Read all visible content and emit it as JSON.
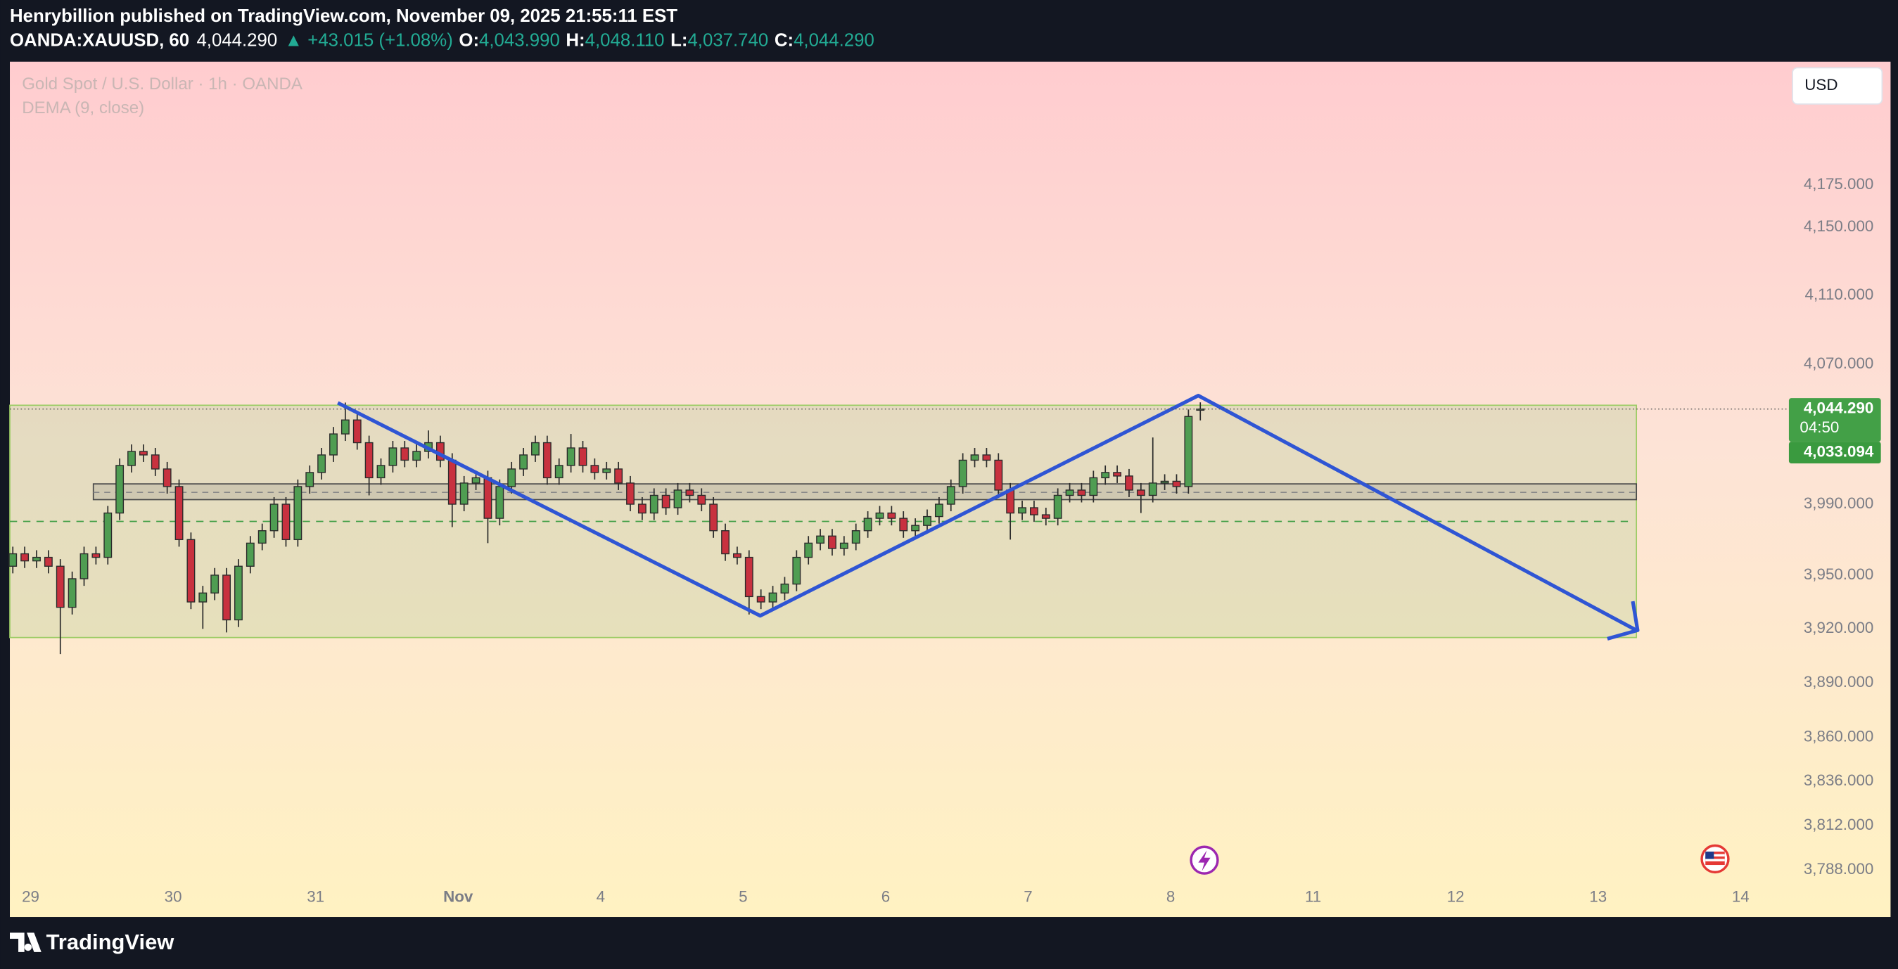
{
  "header": {
    "published": "Henrybillion published on TradingView.com, November 09, 2025 21:55:11 EST",
    "symbol": "OANDA:XAUUSD, 60",
    "last": "4,044.290",
    "change": "▲ +43.015 (+1.08%)",
    "o_label": "O:",
    "o": "4,043.990",
    "h_label": "H:",
    "h": "4,048.110",
    "l_label": "L:",
    "l": "4,037.740",
    "c_label": "C:",
    "c": "4,044.290"
  },
  "chart_data": {
    "type": "candlestick",
    "title": "Gold Spot / U.S. Dollar · 1h · OANDA",
    "indicator": "DEMA (9, close)",
    "currency": "USD",
    "up_color": "#4f9d52",
    "down_color": "#c8313f",
    "log_scale": true,
    "x": [
      -3,
      -1,
      1,
      3,
      5,
      7,
      9,
      11,
      13,
      15,
      17,
      19,
      21,
      23,
      25,
      27,
      29,
      31,
      33,
      35,
      37,
      39,
      41,
      43,
      45,
      47,
      49,
      51,
      53,
      55,
      57,
      59,
      61,
      63,
      65,
      67,
      69,
      71,
      73,
      75,
      77,
      79,
      81,
      83,
      85,
      87,
      89,
      91,
      93,
      95,
      97,
      99,
      101,
      103,
      105,
      107,
      109,
      111,
      113,
      115,
      117,
      119,
      121,
      123,
      125,
      127,
      129,
      131,
      133,
      135,
      137,
      139,
      141,
      143,
      145,
      147,
      149,
      151,
      153,
      155,
      157,
      159,
      161,
      163,
      165,
      167,
      169,
      171,
      173,
      175,
      177,
      179,
      181,
      183,
      185,
      187,
      189,
      191,
      193,
      195,
      197
    ],
    "open": [
      3955,
      3962,
      3958,
      3960,
      3955,
      3932,
      3948,
      3962,
      3960,
      3985,
      4012,
      4020,
      4018,
      4010,
      4000,
      3970,
      3935,
      3940,
      3950,
      3925,
      3955,
      3968,
      3975,
      3990,
      3970,
      4000,
      4008,
      4018,
      4030,
      4038,
      4025,
      4005,
      4012,
      4022,
      4015,
      4020,
      4025,
      4015,
      3990,
      4002,
      4005,
      3982,
      4000,
      4010,
      4018,
      4025,
      4005,
      4012,
      4022,
      4012,
      4008,
      4010,
      4002,
      3990,
      3985,
      3995,
      3988,
      3998,
      3995,
      3990,
      3975,
      3962,
      3960,
      3938,
      3935,
      3940,
      3945,
      3960,
      3968,
      3972,
      3965,
      3968,
      3975,
      3982,
      3985,
      3982,
      3975,
      3978,
      3983,
      3990,
      4000,
      4015,
      4018,
      4015,
      3998,
      3985,
      3988,
      3984,
      3982,
      3995,
      3998,
      3995,
      4005,
      4008,
      4006,
      3998,
      3995,
      4002,
      4003,
      4000,
      4043.99
    ],
    "high": [
      3966,
      3966,
      3964,
      3964,
      3959,
      3952,
      3966,
      3966,
      3989,
      4016,
      4024,
      4024,
      4022,
      4014,
      4004,
      3974,
      3944,
      3954,
      3954,
      3959,
      3972,
      3979,
      3994,
      3994,
      4004,
      4012,
      4022,
      4034,
      4048,
      4042,
      4029,
      4016,
      4026,
      4026,
      4024,
      4032,
      4029,
      4019,
      4006,
      4009,
      4009,
      4004,
      4014,
      4022,
      4029,
      4029,
      4016,
      4030,
      4026,
      4016,
      4014,
      4014,
      4006,
      3994,
      3999,
      3999,
      4002,
      4002,
      3999,
      3994,
      3979,
      3966,
      3964,
      3942,
      3944,
      3949,
      3964,
      3972,
      3976,
      3976,
      3972,
      3979,
      3986,
      3989,
      3989,
      3986,
      3982,
      3987,
      3994,
      4004,
      4019,
      4022,
      4022,
      4019,
      4002,
      3992,
      3992,
      3988,
      3999,
      4002,
      4002,
      4009,
      4012,
      4012,
      4010,
      4002,
      4028,
      4007,
      4007,
      4044,
      4048.11
    ],
    "low": [
      3951,
      3954,
      3954,
      3951,
      3906,
      3928,
      3944,
      3956,
      3956,
      3981,
      4008,
      4014,
      4006,
      3996,
      3966,
      3931,
      3920,
      3936,
      3918,
      3921,
      3951,
      3964,
      3971,
      3966,
      3966,
      3996,
      4004,
      4014,
      4026,
      4021,
      3995,
      4001,
      4008,
      4011,
      4011,
      4016,
      4011,
      3977,
      3986,
      3998,
      3968,
      3978,
      3996,
      4006,
      4014,
      4001,
      4001,
      4008,
      4008,
      4004,
      4004,
      3998,
      3986,
      3981,
      3981,
      3984,
      3984,
      3991,
      3986,
      3971,
      3958,
      3956,
      3928,
      3931,
      3931,
      3936,
      3941,
      3956,
      3964,
      3961,
      3961,
      3964,
      3971,
      3978,
      3978,
      3971,
      3971,
      3974,
      3979,
      3986,
      3996,
      4011,
      4011,
      3994,
      3970,
      3981,
      3980,
      3978,
      3978,
      3991,
      3991,
      3991,
      4001,
      4002,
      3994,
      3985,
      3991,
      3998,
      3996,
      3996,
      4037.74
    ],
    "close": [
      3962,
      3958,
      3960,
      3955,
      3932,
      3948,
      3962,
      3960,
      3985,
      4012,
      4020,
      4018,
      4010,
      4000,
      3970,
      3935,
      3940,
      3950,
      3925,
      3955,
      3968,
      3975,
      3990,
      3970,
      4000,
      4008,
      4018,
      4030,
      4038,
      4025,
      4005,
      4012,
      4022,
      4015,
      4020,
      4025,
      4015,
      3990,
      4002,
      4005,
      3982,
      4000,
      4010,
      4018,
      4025,
      4005,
      4012,
      4022,
      4012,
      4008,
      4010,
      4002,
      3990,
      3985,
      3995,
      3988,
      3998,
      3995,
      3990,
      3975,
      3962,
      3960,
      3938,
      3935,
      3940,
      3945,
      3960,
      3968,
      3972,
      3965,
      3968,
      3975,
      3982,
      3985,
      3982,
      3975,
      3978,
      3983,
      3990,
      4000,
      4015,
      4018,
      4015,
      3998,
      3985,
      3988,
      3984,
      3982,
      3995,
      3998,
      3995,
      4005,
      4008,
      4006,
      3998,
      3995,
      4002,
      4003,
      4000,
      4040,
      4044.29
    ],
    "xlim": [
      -3.5,
      294.5
    ],
    "xticks": [
      {
        "value": 0,
        "label": "29"
      },
      {
        "value": 24,
        "label": "30"
      },
      {
        "value": 48,
        "label": "31"
      },
      {
        "value": 72,
        "label": "Nov"
      },
      {
        "value": 96,
        "label": "4"
      },
      {
        "value": 120,
        "label": "5"
      },
      {
        "value": 144,
        "label": "6"
      },
      {
        "value": 168,
        "label": "7"
      },
      {
        "value": 192,
        "label": "8"
      },
      {
        "value": 216,
        "label": "11"
      },
      {
        "value": 240,
        "label": "12"
      },
      {
        "value": 264,
        "label": "13"
      },
      {
        "value": 288,
        "label": "14"
      }
    ],
    "ylim": [
      3781,
      4248
    ],
    "yticks": [
      {
        "value": 4175,
        "label": "4,175.000"
      },
      {
        "value": 4150,
        "label": "4,150.000"
      },
      {
        "value": 4110,
        "label": "4,110.000"
      },
      {
        "value": 4070,
        "label": "4,070.000"
      },
      {
        "value": 3990,
        "label": "3,990.000"
      },
      {
        "value": 3950,
        "label": "3,950.000"
      },
      {
        "value": 3920,
        "label": "3,920.000"
      },
      {
        "value": 3890,
        "label": "3,890.000"
      },
      {
        "value": 3860,
        "label": "3,860.000"
      },
      {
        "value": 3836,
        "label": "3,836.000"
      },
      {
        "value": 3812,
        "label": "3,812.000"
      },
      {
        "value": 3788,
        "label": "3,788.000"
      }
    ],
    "price_label": "4,044.290",
    "countdown": "04:50",
    "indicator_label": "4,033.094"
  },
  "footer": {
    "brand": "TradingView"
  }
}
